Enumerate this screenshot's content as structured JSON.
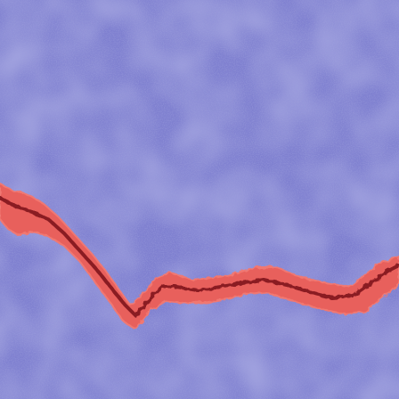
{
  "image": {
    "subject": "segmentation-overlay-crack",
    "classes": [
      {
        "name": "background",
        "color": "#7f80d0"
      },
      {
        "name": "crack",
        "color": "#e8605c"
      }
    ],
    "palette": {
      "background_base": "#7f80d0",
      "background_light": "#9a9bde",
      "background_dark": "#6465b6",
      "crack_fill": "#e8605c",
      "crack_edge": "#f07872",
      "crack_core": "#8a1a22"
    }
  }
}
